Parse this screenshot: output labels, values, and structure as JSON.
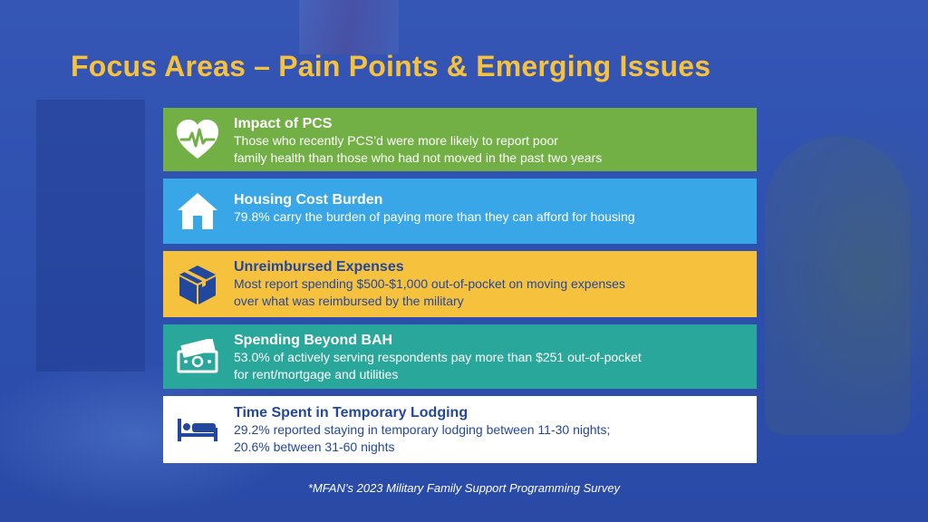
{
  "title": "Focus Areas – Pain Points & Emerging Issues",
  "cards": [
    {
      "heading": "Impact of PCS",
      "body": "Those who recently PCS’d were more likely to report poor\nfamily health than those who had not moved in the past two years",
      "icon": "heart-pulse-icon",
      "color": "#72b045"
    },
    {
      "heading": "Housing Cost Burden",
      "body": "79.8% carry the burden of paying more than they can afford for housing",
      "icon": "house-icon",
      "color": "#39a6e8"
    },
    {
      "heading": "Unreimbursed Expenses",
      "body": "Most report spending $500-$1,000 out-of-pocket on moving expenses\nover what was reimbursed by the military",
      "icon": "box-icon",
      "color": "#f6c23e"
    },
    {
      "heading": "Spending Beyond BAH",
      "body": "53.0% of actively serving respondents pay more than $251 out-of-pocket\nfor rent/mortgage and utilities",
      "icon": "money-icon",
      "color": "#2aa79b"
    },
    {
      "heading": "Time Spent in Temporary Lodging",
      "body": "29.2% reported staying in temporary lodging between 11-30 nights;\n20.6% between 31-60 nights",
      "icon": "bed-icon",
      "color": "#ffffff"
    }
  ],
  "footnote": "*MFAN’s 2023 Military Family Support Programming Survey",
  "colors": {
    "background": "#2d4fae",
    "title": "#f6c23e",
    "dark_text": "#24479e"
  }
}
